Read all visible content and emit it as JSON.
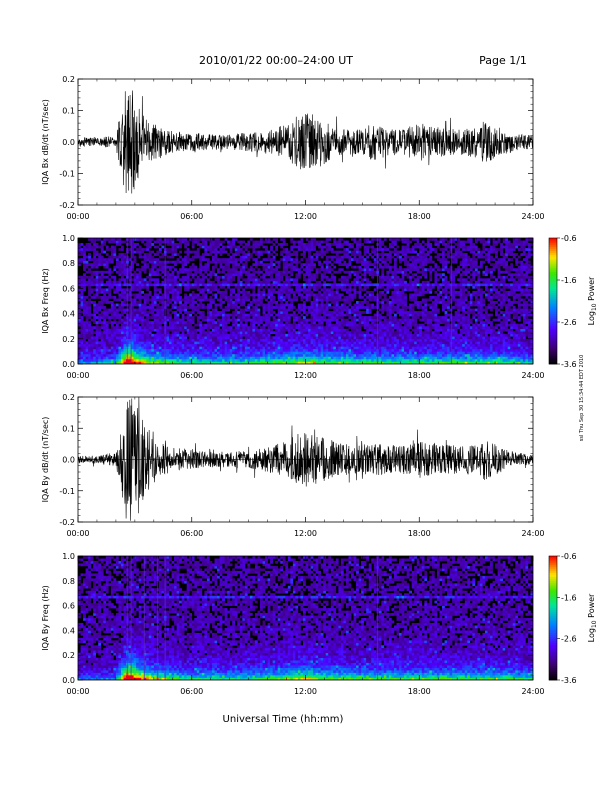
{
  "header": {
    "title": "2010/01/22  00:00–24:00 UT",
    "page": "Page 1/1"
  },
  "footer": {
    "xlabel": "Universal Time (hh:mm)"
  },
  "side_stamp": "ssl Thu Sep 30 15:34:44 EDT 2010",
  "chart_data": [
    {
      "type": "line",
      "ylabel": "IQA Bx dB/dt (nT/sec)",
      "xlim": [
        0,
        24
      ],
      "ylim": [
        -0.2,
        0.2
      ],
      "x_ticks": [
        "00:00",
        "06:00",
        "12:00",
        "18:00",
        "24:00"
      ],
      "y_ticks": [
        "-0.2",
        "-0.1",
        "0.0",
        "0.1",
        "0.2"
      ],
      "envelope": {
        "hours": [
          0,
          1,
          2,
          2.55,
          2.75,
          3.1,
          3.5,
          4,
          4.5,
          5,
          6,
          7,
          8,
          9,
          10,
          10.5,
          11,
          11.5,
          12,
          12.5,
          13,
          13.5,
          14,
          15,
          15.5,
          16,
          17,
          17.5,
          18,
          19,
          20,
          21,
          21.5,
          22,
          23,
          24
        ],
        "amplitude": [
          0.015,
          0.015,
          0.02,
          0.2,
          0.2,
          0.12,
          0.08,
          0.06,
          0.05,
          0.035,
          0.03,
          0.025,
          0.025,
          0.03,
          0.035,
          0.045,
          0.06,
          0.08,
          0.1,
          0.09,
          0.07,
          0.05,
          0.04,
          0.04,
          0.06,
          0.05,
          0.04,
          0.05,
          0.06,
          0.05,
          0.04,
          0.05,
          0.07,
          0.05,
          0.03,
          0.02
        ]
      }
    },
    {
      "type": "heatmap",
      "ylabel": "IQA Bx Freq (Hz)",
      "xlim": [
        0,
        24
      ],
      "ylim": [
        0,
        1.0
      ],
      "x_ticks": [
        "00:00",
        "06:00",
        "12:00",
        "18:00",
        "24:00"
      ],
      "y_ticks": [
        "0.0",
        "0.2",
        "0.4",
        "0.6",
        "0.8",
        "1.0"
      ],
      "colorbar": {
        "label": "Log10 Power",
        "min": -3.6,
        "max": -0.6,
        "ticks": [
          "-0.6",
          "-1.6",
          "-2.6",
          "-3.6"
        ]
      },
      "activity": {
        "hours": [
          0,
          2,
          2.55,
          2.75,
          3.2,
          4,
          6,
          9,
          11,
          12,
          13,
          15,
          16,
          18,
          20,
          22,
          24
        ],
        "level": [
          0.3,
          0.35,
          1.0,
          1.0,
          0.75,
          0.55,
          0.45,
          0.45,
          0.55,
          0.6,
          0.55,
          0.5,
          0.5,
          0.5,
          0.5,
          0.5,
          0.4
        ]
      },
      "spectral_lines_hz": [
        0.63
      ],
      "vertical_streaks_hours": [
        2.6,
        2.8,
        4.6,
        15.8,
        19.7
      ]
    },
    {
      "type": "line",
      "ylabel": "IQA By dB/dt (nT/sec)",
      "xlim": [
        0,
        24
      ],
      "ylim": [
        -0.2,
        0.2
      ],
      "x_ticks": [
        "00:00",
        "06:00",
        "12:00",
        "18:00",
        "24:00"
      ],
      "y_ticks": [
        "-0.2",
        "-0.1",
        "0.0",
        "0.1",
        "0.2"
      ],
      "envelope": {
        "hours": [
          0,
          1,
          2,
          2.55,
          2.75,
          3.3,
          3.7,
          4,
          4.5,
          5,
          6,
          7,
          8,
          9,
          10,
          11,
          11.5,
          12,
          12.5,
          13,
          14,
          15,
          16,
          17,
          17.5,
          18,
          19,
          20,
          21,
          21.5,
          22,
          23,
          24
        ],
        "amplitude": [
          0.012,
          0.013,
          0.02,
          0.2,
          0.2,
          0.2,
          0.1,
          0.07,
          0.05,
          0.04,
          0.03,
          0.025,
          0.025,
          0.03,
          0.04,
          0.06,
          0.08,
          0.09,
          0.08,
          0.07,
          0.05,
          0.05,
          0.05,
          0.045,
          0.05,
          0.06,
          0.05,
          0.045,
          0.05,
          0.07,
          0.05,
          0.025,
          0.015
        ]
      }
    },
    {
      "type": "heatmap",
      "ylabel": "IQA By Freq (Hz)",
      "xlim": [
        0,
        24
      ],
      "ylim": [
        0,
        1.0
      ],
      "x_ticks": [
        "00:00",
        "06:00",
        "12:00",
        "18:00",
        "24:00"
      ],
      "y_ticks": [
        "0.0",
        "0.2",
        "0.4",
        "0.6",
        "0.8",
        "1.0"
      ],
      "colorbar": {
        "label": "Log10 Power",
        "min": -3.6,
        "max": -0.6,
        "ticks": [
          "-0.6",
          "-1.6",
          "-2.6",
          "-3.6"
        ]
      },
      "activity": {
        "hours": [
          0,
          2,
          2.55,
          2.75,
          3.2,
          4,
          6,
          9,
          11,
          12,
          13,
          15,
          16,
          18,
          20,
          22,
          24
        ],
        "level": [
          0.25,
          0.3,
          1.0,
          1.0,
          0.8,
          0.6,
          0.45,
          0.45,
          0.55,
          0.65,
          0.55,
          0.5,
          0.5,
          0.5,
          0.5,
          0.5,
          0.45
        ]
      },
      "spectral_lines_hz": [
        0.67
      ],
      "vertical_streaks_hours": [
        2.6,
        2.8,
        3.5,
        4.2,
        4.6,
        15.8
      ]
    }
  ]
}
